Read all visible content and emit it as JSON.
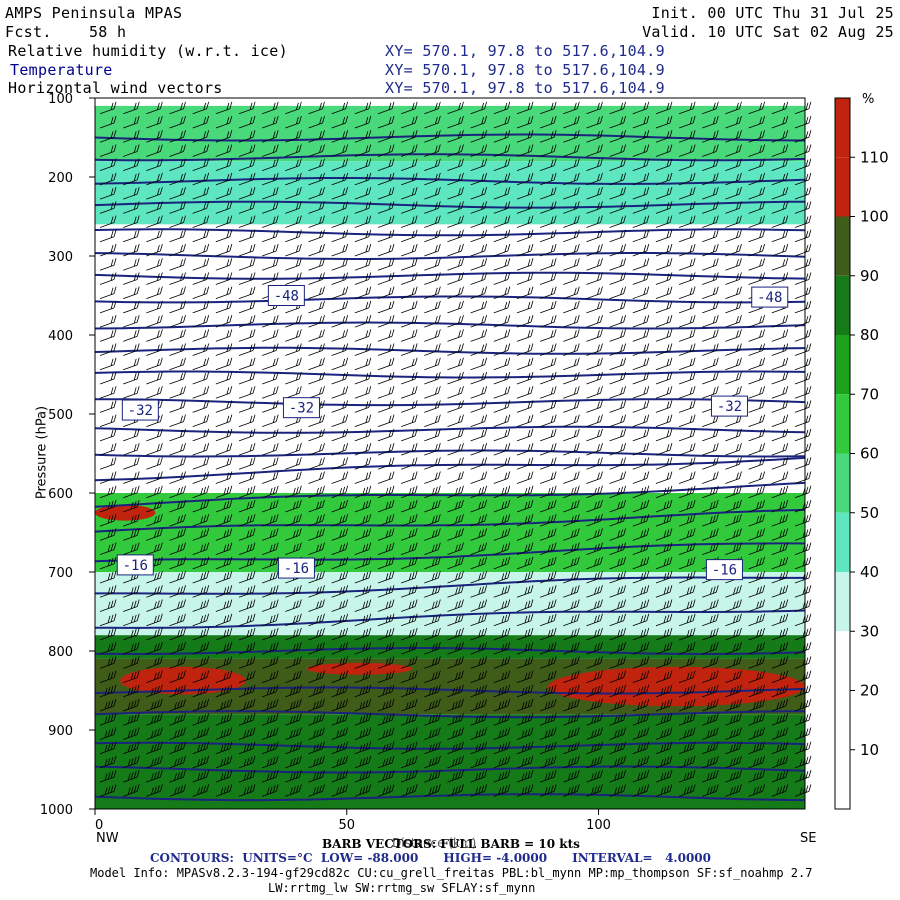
{
  "header": {
    "model": "AMPS Peninsula MPAS",
    "fcst": "Fcst.    58 h",
    "init": "Init. 00 UTC Thu 31 Jul 25",
    "valid": "Valid. 10 UTC Sat 02 Aug 25",
    "fields": [
      {
        "name": "Relative humidity (w.r.t. ice)",
        "xy": "XY= 570.1, 97.8 to 517.6,104.9"
      },
      {
        "name": "Temperature",
        "xy": "XY= 570.1, 97.8 to 517.6,104.9"
      },
      {
        "name": "Horizontal wind vectors",
        "xy": "XY= 570.1, 97.8 to 517.6,104.9"
      }
    ]
  },
  "footer": {
    "barb": "BARB VECTORS: FULL BARB = 10 kts",
    "xlabel_overlap": "Distance (km)",
    "contours": "CONTOURS:  UNITS=°C  LOW= -88.000      HIGH= -4.0000      INTERVAL=   4.0000",
    "model_info": "Model Info: MPASv8.2.3-194-gf29cd82c CU:cu_grell_freitas PBL:bl_mynn MP:mp_thompson SF:sf_noahmp 2.7",
    "model_info2": "LW:rrtmg_lw SW:rrtmg_sw SFLAY:sf_mynn"
  },
  "chart_data": {
    "type": "heatmap",
    "title": "Relative humidity (w.r.t. ice)",
    "xlabel": "Distance (km)",
    "ylabel": "Pressure (hPa)",
    "x_ticks": [
      0,
      50,
      100
    ],
    "x_end_labels": {
      "left": "NW",
      "right": "SE"
    },
    "xlim": [
      0,
      141
    ],
    "y_ticks": [
      100,
      200,
      300,
      400,
      500,
      600,
      700,
      800,
      900,
      1000
    ],
    "ylim": [
      1000,
      100
    ],
    "colorbar": {
      "unit": "%",
      "labels": [
        10,
        20,
        30,
        40,
        50,
        60,
        70,
        80,
        90,
        100,
        110
      ],
      "colors": [
        "#ffffff",
        "#ffffff",
        "#ffffff",
        "#c8f5ea",
        "#5ee6c0",
        "#4ad97a",
        "#33c93d",
        "#1ca31c",
        "#157a18",
        "#3f5c18",
        "#c0240e"
      ]
    },
    "rh_layers": [
      {
        "p_top": 110,
        "p_bot": 180,
        "rh": 50
      },
      {
        "p_top": 180,
        "p_bot": 260,
        "rh": 40
      },
      {
        "p_top": 260,
        "p_bot": 600,
        "rh": 15
      },
      {
        "p_top": 600,
        "p_bot": 700,
        "rh": 60
      },
      {
        "p_top": 700,
        "p_bot": 780,
        "rh": 35
      },
      {
        "p_top": 780,
        "p_bot": 810,
        "rh": 80
      },
      {
        "p_top": 810,
        "p_bot": 880,
        "rh": 95
      },
      {
        "p_top": 880,
        "p_bot": 1000,
        "rh": 85
      }
    ],
    "temperature_labels": [
      {
        "value": "-48",
        "x": 38,
        "p": 350
      },
      {
        "value": "-48",
        "x": 134,
        "p": 352
      },
      {
        "value": "-32",
        "x": 9,
        "p": 495
      },
      {
        "value": "-32",
        "x": 41,
        "p": 492
      },
      {
        "value": "-32",
        "x": 126,
        "p": 490
      },
      {
        "value": "-16",
        "x": 8,
        "p": 691
      },
      {
        "value": "-16",
        "x": 40,
        "p": 695
      },
      {
        "value": "-16",
        "x": 125,
        "p": 697
      }
    ],
    "isotherm_levels_hpa": [
      150,
      175,
      205,
      235,
      270,
      300,
      325,
      355,
      388,
      420,
      450,
      485,
      520,
      550,
      580,
      615,
      650,
      690,
      730,
      770,
      800,
      850,
      880,
      920,
      950,
      985
    ]
  }
}
